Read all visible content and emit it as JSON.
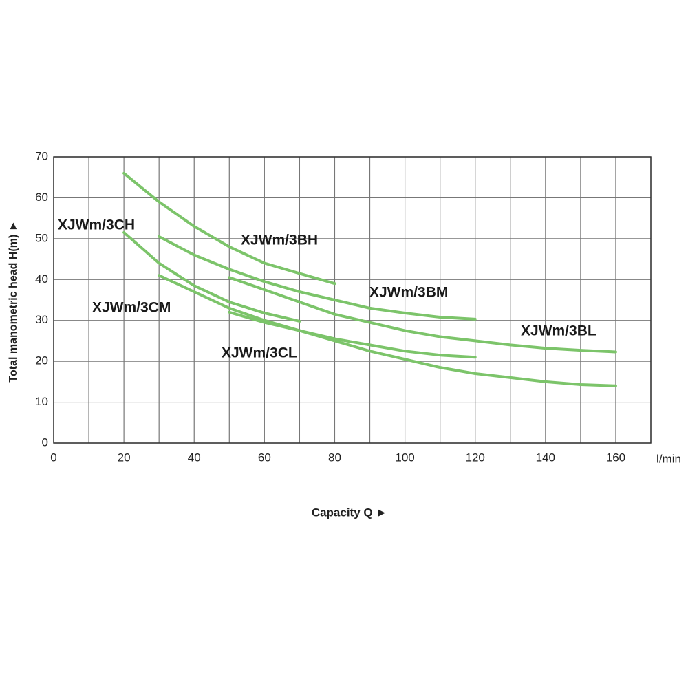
{
  "chart_data": {
    "type": "line",
    "xlabel": "Capacity Q  ►",
    "ylabel": "Total manometric head H(m)  ►",
    "xunit": "l/min",
    "xlim": [
      0,
      170
    ],
    "ylim": [
      0,
      70
    ],
    "xticks": [
      0,
      20,
      40,
      60,
      80,
      100,
      120,
      140,
      160
    ],
    "x_minor_ticks": [
      10,
      30,
      50,
      70,
      90,
      110,
      130,
      150,
      170
    ],
    "yticks": [
      0,
      10,
      20,
      30,
      40,
      50,
      60,
      70
    ],
    "grid": true,
    "series": [
      {
        "name": "XJWm/3BH",
        "color": "#7cc46a",
        "x": [
          20,
          30,
          40,
          50,
          60,
          70,
          80
        ],
        "values": [
          66,
          59,
          53,
          48,
          44,
          41.5,
          39
        ]
      },
      {
        "name": "XJWm/3BM",
        "color": "#7cc46a",
        "x": [
          30,
          40,
          50,
          60,
          70,
          80,
          90,
          100,
          110,
          120
        ],
        "values": [
          50.5,
          46,
          42.5,
          39.5,
          37,
          35,
          33,
          31.8,
          30.8,
          30.3
        ]
      },
      {
        "name": "XJWm/3BL",
        "color": "#7cc46a",
        "x": [
          50,
          60,
          70,
          80,
          90,
          100,
          110,
          120,
          130,
          140,
          150,
          160
        ],
        "values": [
          40.5,
          37.5,
          34.5,
          31.5,
          29.5,
          27.5,
          26,
          25,
          24,
          23.2,
          22.7,
          22.3
        ]
      },
      {
        "name": "XJWm/3CH",
        "color": "#7cc46a",
        "x": [
          20,
          30,
          40,
          50,
          60,
          70
        ],
        "values": [
          51.5,
          44,
          38.5,
          34.5,
          31.8,
          29.8
        ]
      },
      {
        "name": "XJWm/3CM",
        "color": "#7cc46a",
        "x": [
          30,
          40,
          50,
          60,
          70,
          80,
          90,
          100,
          110,
          120
        ],
        "values": [
          41,
          37,
          33,
          30,
          27.5,
          25.5,
          24,
          22.5,
          21.5,
          21
        ]
      },
      {
        "name": "XJWm/3CL",
        "color": "#7cc46a",
        "x": [
          50,
          60,
          70,
          80,
          90,
          100,
          110,
          120,
          130,
          140,
          150,
          160
        ],
        "values": [
          32,
          29.5,
          27.5,
          25,
          22.5,
          20.5,
          18.5,
          17,
          16,
          15,
          14.3,
          14
        ]
      }
    ]
  }
}
